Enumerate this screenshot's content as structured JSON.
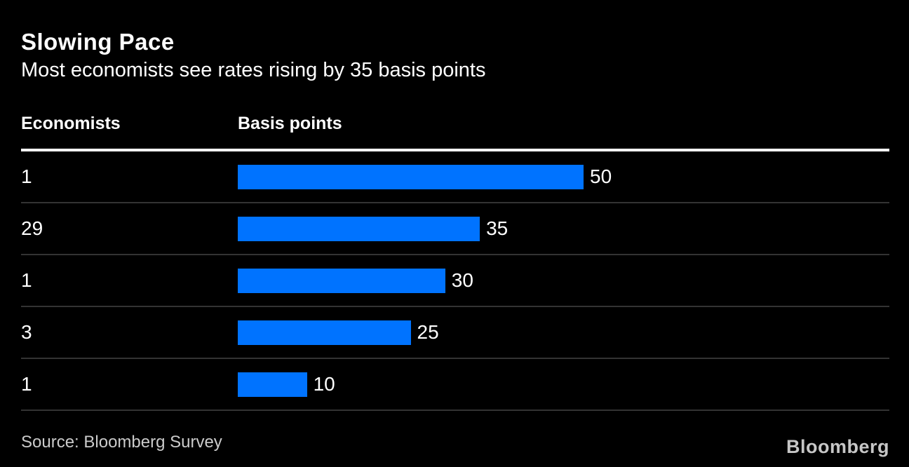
{
  "header": {
    "title": "Slowing Pace",
    "subtitle": "Most economists see rates rising by 35 basis points"
  },
  "table": {
    "col1_header": "Economists",
    "col2_header": "Basis points"
  },
  "chart_data": {
    "type": "bar",
    "orientation": "horizontal",
    "title": "Slowing Pace",
    "subtitle": "Most economists see rates rising by 35 basis points",
    "category_axis_label": "Economists",
    "value_axis_label": "Basis points",
    "categories": [
      "1",
      "29",
      "1",
      "3",
      "1"
    ],
    "values": [
      50,
      35,
      30,
      25,
      10
    ],
    "xlim": [
      0,
      50
    ],
    "grid": "row-separators-only",
    "legend": "none",
    "bar_color": "#0073ff"
  },
  "footer": {
    "source": "Source: Bloomberg Survey",
    "logo": "Bloomberg"
  },
  "colors": {
    "background": "#000000",
    "bar": "#0073ff",
    "text": "#ffffff",
    "separator": "#333333",
    "muted": "#cbcbcb"
  }
}
